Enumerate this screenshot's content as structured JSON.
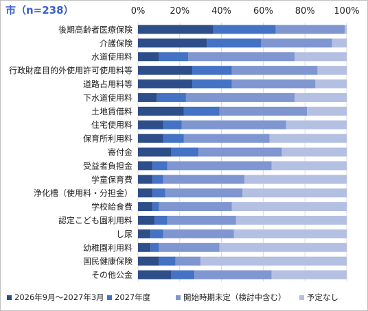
{
  "title": "市（n=238）",
  "colors": [
    "#2e4e8a",
    "#4472c4",
    "#7f96d0",
    "#b4c0e2"
  ],
  "chart_data": {
    "type": "bar",
    "orientation": "horizontal",
    "stacked": true,
    "xlim": [
      0,
      100
    ],
    "x_ticks": [
      "0%",
      "20%",
      "40%",
      "60%",
      "80%",
      "100%"
    ],
    "grid": true,
    "legend_position": "bottom",
    "categories": [
      "後期高齢者医療保険",
      "介護保険",
      "水道使用料",
      "行政財産目的外使用許可使用料等",
      "道路占用料等",
      "下水道使用料",
      "土地賃借料",
      "住宅使用料",
      "保育所利用料",
      "寄付金",
      "受益者負担金",
      "学童保育費",
      "浄化槽（使用料・分担金）",
      "学校給食費",
      "認定こども園利用料",
      "し尿",
      "幼稚園利用料",
      "国民健康保険",
      "その他公金"
    ],
    "series": [
      {
        "name": "2026年9月～2027年3月",
        "values": [
          36,
          33,
          10,
          26,
          26,
          9,
          22,
          12,
          12,
          16,
          7,
          7,
          7,
          7,
          8,
          6,
          6,
          10,
          16
        ]
      },
      {
        "name": "2027年度",
        "values": [
          30,
          26,
          14,
          19,
          19,
          14,
          17,
          9,
          10,
          13,
          7,
          5,
          6,
          3,
          6,
          6,
          4,
          8,
          11
        ]
      },
      {
        "name": "開始時期未定（検討中含む）",
        "values": [
          33,
          34,
          51,
          41,
          40,
          52,
          42,
          50,
          41,
          40,
          50,
          39,
          37,
          35,
          33,
          34,
          29,
          12,
          37
        ]
      },
      {
        "name": "予定なし",
        "values": [
          1,
          7,
          25,
          14,
          15,
          25,
          19,
          29,
          37,
          31,
          36,
          49,
          50,
          55,
          53,
          54,
          61,
          70,
          36
        ]
      }
    ]
  }
}
